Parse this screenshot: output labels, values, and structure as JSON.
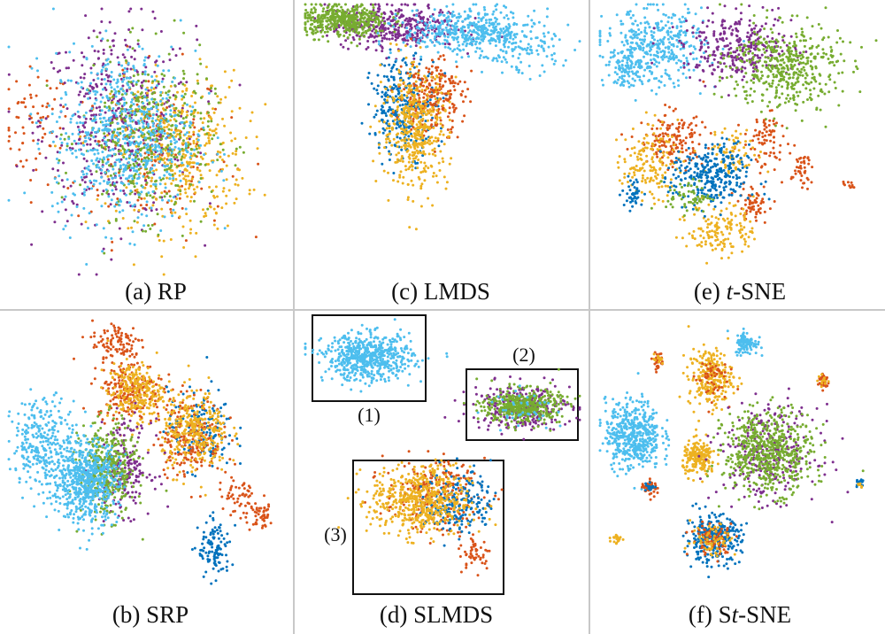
{
  "colors": {
    "purple": "#7e2f8e",
    "lightblue": "#4dbeee",
    "green": "#77ac30",
    "yellow": "#edb120",
    "orange": "#d95319",
    "blue": "#0072bd"
  },
  "chart_data": [
    {
      "id": "a",
      "type": "scatter",
      "title": "(a) RP",
      "title_prefix": "(a) ",
      "title_italic": "",
      "title_suffix": "RP",
      "xlim": [
        0,
        100
      ],
      "ylim": [
        0,
        100
      ],
      "clusters": [
        {
          "color": "orange",
          "cx": 10,
          "cy": 56,
          "sx": 6,
          "sy": 11,
          "n": 70
        },
        {
          "color": "orange",
          "cx": 52,
          "cy": 46,
          "sx": 14,
          "sy": 16,
          "n": 160
        },
        {
          "color": "purple",
          "cx": 40,
          "cy": 57,
          "sx": 14,
          "sy": 18,
          "n": 450
        },
        {
          "color": "yellow",
          "cx": 62,
          "cy": 46,
          "sx": 12,
          "sy": 15,
          "n": 420
        },
        {
          "color": "green",
          "cx": 50,
          "cy": 52,
          "sx": 12,
          "sy": 15,
          "n": 420
        },
        {
          "color": "lightblue",
          "cx": 42,
          "cy": 52,
          "sx": 13,
          "sy": 16,
          "n": 650
        }
      ]
    },
    {
      "id": "c",
      "type": "scatter",
      "title": "(c) LMDS",
      "title_prefix": "(c) ",
      "title_italic": "",
      "title_suffix": "LMDS",
      "xlim": [
        0,
        100
      ],
      "ylim": [
        0,
        100
      ],
      "clusters": [
        {
          "color": "purple",
          "cx": 32,
          "cy": 92,
          "sx": 12,
          "sy": 4,
          "n": 400
        },
        {
          "color": "green",
          "cx": 14,
          "cy": 94,
          "sx": 8,
          "sy": 3,
          "n": 450
        },
        {
          "color": "lightblue",
          "cx": 60,
          "cy": 90,
          "sx": 12,
          "sy": 4,
          "n": 450
        },
        {
          "color": "lightblue",
          "cx": 78,
          "cy": 82,
          "sx": 7,
          "sy": 4,
          "n": 90
        },
        {
          "color": "blue",
          "cx": 36,
          "cy": 62,
          "sx": 6,
          "sy": 9,
          "n": 300
        },
        {
          "color": "orange",
          "cx": 46,
          "cy": 66,
          "sx": 6,
          "sy": 7,
          "n": 250
        },
        {
          "color": "yellow",
          "cx": 40,
          "cy": 54,
          "sx": 6,
          "sy": 11,
          "n": 450
        }
      ]
    },
    {
      "id": "e",
      "type": "scatter",
      "title": "(e) t-SNE",
      "title_prefix": "(e) ",
      "title_italic": "t",
      "title_suffix": "-SNE",
      "xlim": [
        0,
        100
      ],
      "ylim": [
        0,
        100
      ],
      "clusters": [
        {
          "color": "lightblue",
          "cx": 20,
          "cy": 84,
          "sx": 9,
          "sy": 7,
          "n": 400
        },
        {
          "color": "lightblue",
          "cx": 10,
          "cy": 76,
          "sx": 4,
          "sy": 3,
          "n": 80
        },
        {
          "color": "purple",
          "cx": 50,
          "cy": 84,
          "sx": 10,
          "sy": 6,
          "n": 300
        },
        {
          "color": "green",
          "cx": 67,
          "cy": 77,
          "sx": 10,
          "sy": 8,
          "n": 450
        },
        {
          "color": "orange",
          "cx": 26,
          "cy": 50,
          "sx": 6,
          "sy": 5,
          "n": 150
        },
        {
          "color": "orange",
          "cx": 60,
          "cy": 49,
          "sx": 4,
          "sy": 6,
          "n": 80
        },
        {
          "color": "orange",
          "cx": 55,
          "cy": 26,
          "sx": 3,
          "sy": 3,
          "n": 60
        },
        {
          "color": "orange",
          "cx": 73,
          "cy": 38,
          "sx": 2,
          "sy": 3,
          "n": 40
        },
        {
          "color": "orange",
          "cx": 90,
          "cy": 33,
          "sx": 1,
          "sy": 1,
          "n": 10
        },
        {
          "color": "yellow",
          "cx": 18,
          "cy": 42,
          "sx": 5,
          "sy": 7,
          "n": 150
        },
        {
          "color": "yellow",
          "cx": 44,
          "cy": 17,
          "sx": 6,
          "sy": 5,
          "n": 150
        },
        {
          "color": "yellow",
          "cx": 49,
          "cy": 45,
          "sx": 5,
          "sy": 4,
          "n": 80
        },
        {
          "color": "blue",
          "cx": 40,
          "cy": 36,
          "sx": 7,
          "sy": 6,
          "n": 300
        },
        {
          "color": "blue",
          "cx": 12,
          "cy": 30,
          "sx": 2,
          "sy": 3,
          "n": 40
        },
        {
          "color": "green",
          "cx": 32,
          "cy": 29,
          "sx": 4,
          "sy": 3,
          "n": 60
        }
      ]
    },
    {
      "id": "b",
      "type": "scatter",
      "title": "(b) SRP",
      "title_prefix": "(b) ",
      "title_italic": "",
      "title_suffix": "SRP",
      "xlim": [
        0,
        100
      ],
      "ylim": [
        0,
        100
      ],
      "clusters": [
        {
          "color": "orange",
          "cx": 40,
          "cy": 90,
          "sx": 5,
          "sy": 4,
          "n": 100
        },
        {
          "color": "orange",
          "cx": 44,
          "cy": 74,
          "sx": 6,
          "sy": 5,
          "n": 200
        },
        {
          "color": "yellow",
          "cx": 46,
          "cy": 73,
          "sx": 5,
          "sy": 5,
          "n": 250
        },
        {
          "color": "blue",
          "cx": 70,
          "cy": 60,
          "sx": 6,
          "sy": 7,
          "n": 150
        },
        {
          "color": "orange",
          "cx": 66,
          "cy": 58,
          "sx": 6,
          "sy": 7,
          "n": 200
        },
        {
          "color": "yellow",
          "cx": 68,
          "cy": 59,
          "sx": 6,
          "sy": 7,
          "n": 300
        },
        {
          "color": "orange",
          "cx": 84,
          "cy": 35,
          "sx": 4,
          "sy": 5,
          "n": 60
        },
        {
          "color": "orange",
          "cx": 92,
          "cy": 30,
          "sx": 2,
          "sy": 2,
          "n": 40
        },
        {
          "color": "purple",
          "cx": 42,
          "cy": 47,
          "sx": 5,
          "sy": 8,
          "n": 200
        },
        {
          "color": "green",
          "cx": 36,
          "cy": 46,
          "sx": 5,
          "sy": 8,
          "n": 400
        },
        {
          "color": "lightblue",
          "cx": 13,
          "cy": 55,
          "sx": 6,
          "sy": 8,
          "n": 300
        },
        {
          "color": "lightblue",
          "cx": 28,
          "cy": 42,
          "sx": 6,
          "sy": 7,
          "n": 600
        },
        {
          "color": "blue",
          "cx": 75,
          "cy": 18,
          "sx": 3,
          "sy": 5,
          "n": 110
        }
      ]
    },
    {
      "id": "d",
      "type": "scatter",
      "title": "(d) SLMDS",
      "title_prefix": "(d) ",
      "title_italic": "",
      "title_suffix": "SLMDS",
      "xlim": [
        0,
        100
      ],
      "ylim": [
        0,
        100
      ],
      "subplot_labels": [
        "(1)",
        "(2)",
        "(3)"
      ],
      "clusters": [
        {
          "color": "lightblue",
          "cx": 23,
          "cy": 85,
          "sx": 8,
          "sy": 4,
          "n": 600
        },
        {
          "color": "purple",
          "cx": 79,
          "cy": 68,
          "sx": 9,
          "sy": 4,
          "n": 280
        },
        {
          "color": "green",
          "cx": 79,
          "cy": 68,
          "sx": 7,
          "sy": 3,
          "n": 450
        },
        {
          "color": "lightblue",
          "cx": 79,
          "cy": 68,
          "sx": 6,
          "sy": 3,
          "n": 40
        },
        {
          "color": "orange",
          "cx": 47,
          "cy": 37,
          "sx": 9,
          "sy": 6,
          "n": 250
        },
        {
          "color": "blue",
          "cx": 56,
          "cy": 35,
          "sx": 6,
          "sy": 6,
          "n": 200
        },
        {
          "color": "yellow",
          "cx": 42,
          "cy": 35,
          "sx": 9,
          "sy": 6,
          "n": 550
        },
        {
          "color": "orange",
          "cx": 62,
          "cy": 17,
          "sx": 3,
          "sy": 3,
          "n": 50
        }
      ]
    },
    {
      "id": "f",
      "type": "scatter",
      "title": "(f) St-SNE",
      "title_prefix": "(f) S",
      "title_italic": "t",
      "title_suffix": "-SNE",
      "xlim": [
        0,
        100
      ],
      "ylim": [
        0,
        100
      ],
      "clusters": [
        {
          "color": "lightblue",
          "cx": 53,
          "cy": 90,
          "sx": 2,
          "sy": 2,
          "n": 100
        },
        {
          "color": "orange",
          "cx": 21,
          "cy": 84,
          "sx": 1,
          "sy": 1.5,
          "n": 30
        },
        {
          "color": "yellow",
          "cx": 21,
          "cy": 84,
          "sx": 1,
          "sy": 1,
          "n": 12
        },
        {
          "color": "yellow",
          "cx": 40,
          "cy": 78,
          "sx": 4,
          "sy": 5,
          "n": 250
        },
        {
          "color": "orange",
          "cx": 40,
          "cy": 78,
          "sx": 3,
          "sy": 4,
          "n": 50
        },
        {
          "color": "orange",
          "cx": 81,
          "cy": 77,
          "sx": 1,
          "sy": 1.5,
          "n": 30
        },
        {
          "color": "yellow",
          "cx": 81,
          "cy": 77,
          "sx": 1,
          "sy": 1,
          "n": 12
        },
        {
          "color": "lightblue",
          "cx": 12,
          "cy": 58,
          "sx": 5,
          "sy": 6,
          "n": 500
        },
        {
          "color": "yellow",
          "cx": 36,
          "cy": 50,
          "sx": 3,
          "sy": 3,
          "n": 200
        },
        {
          "color": "purple",
          "cx": 61,
          "cy": 52,
          "sx": 9,
          "sy": 8,
          "n": 300
        },
        {
          "color": "green",
          "cx": 61,
          "cy": 52,
          "sx": 8,
          "sy": 7,
          "n": 600
        },
        {
          "color": "orange",
          "cx": 18,
          "cy": 40,
          "sx": 1.5,
          "sy": 1.5,
          "n": 40
        },
        {
          "color": "blue",
          "cx": 18,
          "cy": 40,
          "sx": 1,
          "sy": 1,
          "n": 15
        },
        {
          "color": "blue",
          "cx": 94,
          "cy": 41,
          "sx": 0.8,
          "sy": 0.8,
          "n": 15
        },
        {
          "color": "yellow",
          "cx": 94,
          "cy": 41,
          "sx": 0.6,
          "sy": 0.6,
          "n": 8
        },
        {
          "color": "yellow",
          "cx": 6,
          "cy": 22,
          "sx": 1,
          "sy": 1,
          "n": 20
        },
        {
          "color": "blue",
          "cx": 41,
          "cy": 22,
          "sx": 5,
          "sy": 4,
          "n": 300
        },
        {
          "color": "orange",
          "cx": 41,
          "cy": 22,
          "sx": 4,
          "sy": 3,
          "n": 80
        },
        {
          "color": "yellow",
          "cx": 41,
          "cy": 22,
          "sx": 4,
          "sy": 3,
          "n": 60
        }
      ]
    }
  ]
}
